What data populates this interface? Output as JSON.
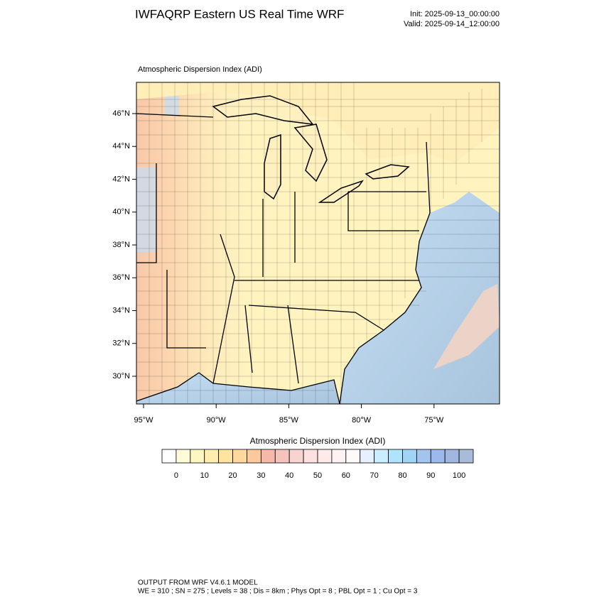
{
  "header": {
    "title": "IWFAQRP Eastern US Real Time WRF",
    "init": "Init: 2025-09-13_00:00:00",
    "valid": "Valid: 2025-09-14_12:00:00"
  },
  "map": {
    "label": "Atmospheric Dispersion Index   (ADI)",
    "lat_labels": [
      "46°N",
      "44°N",
      "42°N",
      "40°N",
      "38°N",
      "36°N",
      "34°N",
      "32°N",
      "30°N"
    ],
    "lon_labels": [
      "95°W",
      "90°W",
      "85°W",
      "80°W",
      "75°W"
    ]
  },
  "colorbar": {
    "label": "Atmospheric Dispersion Index  (ADI)",
    "colors": [
      "#ffffff",
      "#fffbd8",
      "#fff6c0",
      "#ffedb0",
      "#ffe4a0",
      "#ffd8a0",
      "#fcc89c",
      "#f6b8a8",
      "#f4c4bc",
      "#f8d4d0",
      "#fde0e0",
      "#ffeaea",
      "#fff2f2",
      "#fffafa",
      "#e8f0ff",
      "#c8eeff",
      "#b0e4fc",
      "#a0d4f6",
      "#a4c4f0",
      "#9cb8ec",
      "#a0b8e0",
      "#a8bcd8"
    ],
    "ticks": [
      0,
      10,
      20,
      30,
      40,
      50,
      60,
      70,
      80,
      90,
      100
    ]
  },
  "footer": {
    "line1": "OUTPUT FROM WRF V4.6.1 MODEL",
    "line2": "WE = 310 ; SN = 275 ; Levels = 38 ; Dis = 8km ; Phys Opt = 8 ; PBL Opt = 1 ; Cu Opt = 3"
  }
}
